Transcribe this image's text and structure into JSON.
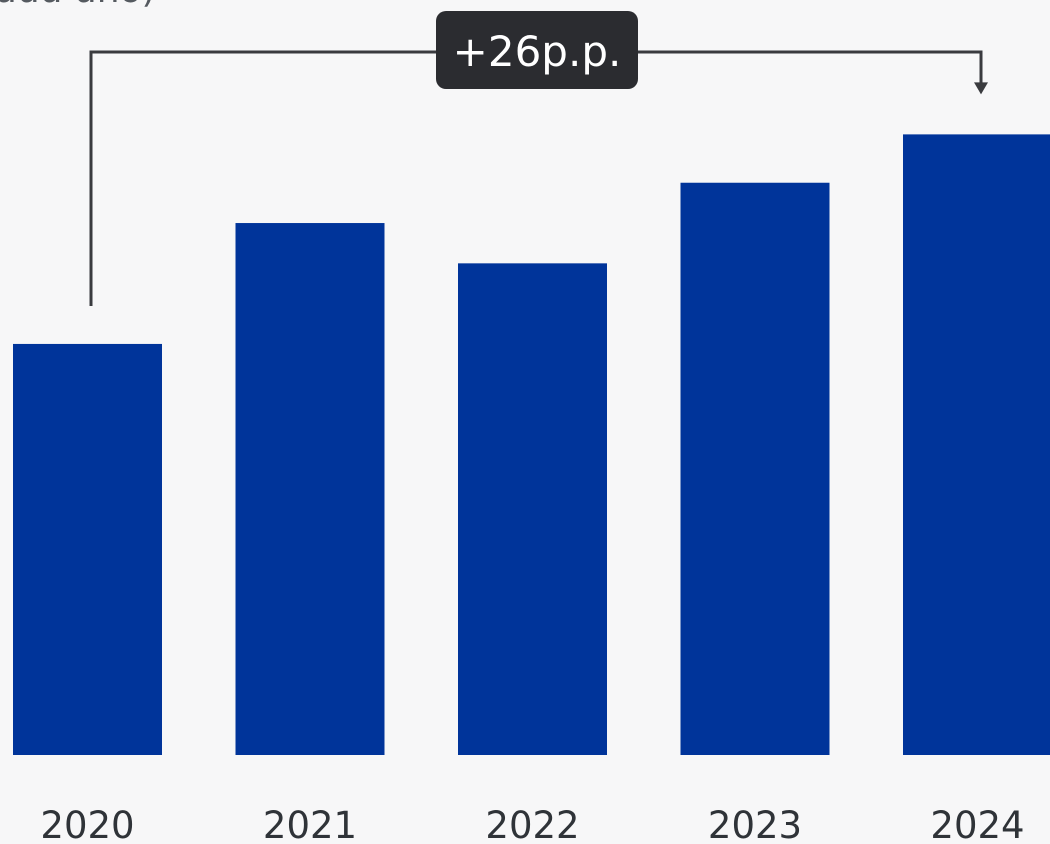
{
  "header_fragment": "uuu uno)",
  "chart_data": {
    "type": "bar",
    "categories": [
      "2020",
      "2021",
      "2022",
      "2023",
      "2024"
    ],
    "values": [
      51,
      66,
      61,
      71,
      77
    ],
    "ylim": [
      0,
      100
    ],
    "color": "#00349a",
    "annotation": {
      "label": "+26p.p.",
      "from": "2020",
      "to": "2024",
      "badge_color": "#2b2c30",
      "line_color": "#3a3b3f"
    }
  }
}
